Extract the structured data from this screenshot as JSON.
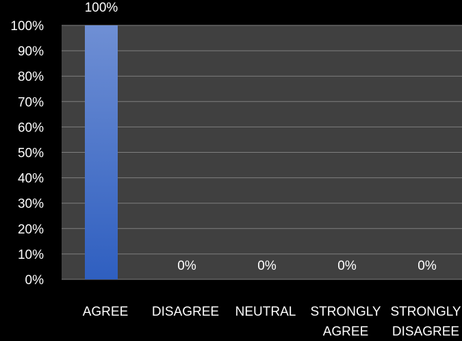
{
  "chart_data": {
    "type": "bar",
    "categories": [
      "AGREE",
      "DISAGREE",
      "NEUTRAL",
      "STRONGLY AGREE",
      "STRONGLY DISAGREE"
    ],
    "category_lines": [
      [
        "AGREE"
      ],
      [
        "DISAGREE"
      ],
      [
        "NEUTRAL"
      ],
      [
        "STRONGLY",
        "AGREE"
      ],
      [
        "STRONGLY",
        "DISAGREE"
      ]
    ],
    "values": [
      100,
      0,
      0,
      0,
      0
    ],
    "data_labels": [
      "100%",
      "0%",
      "0%",
      "0%",
      "0%"
    ],
    "y_ticks": [
      "0%",
      "10%",
      "20%",
      "30%",
      "40%",
      "50%",
      "60%",
      "70%",
      "80%",
      "90%",
      "100%"
    ],
    "ylim": [
      0,
      100
    ],
    "grid": true,
    "title": "",
    "xlabel": "",
    "ylabel": ""
  },
  "colors": {
    "background": "#000000",
    "plot_area": "#404040",
    "gridline": "#7f7f7f",
    "bar_top": "#6f8fd4",
    "bar_bottom": "#2f5fc0",
    "text": "#ffffff"
  }
}
